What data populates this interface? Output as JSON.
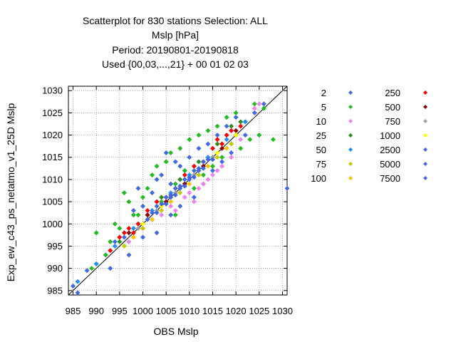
{
  "chart_data": {
    "type": "scatter",
    "title_lines": [
      "Scatterplot for  830 stations Selection: ALL",
      "Mslp [hPa]",
      "Period: 20190801-20190818",
      "Used {00,03,...,21} + 00 01 02 03"
    ],
    "xlabel": "OBS Mslp",
    "ylabel": "Exp_ew_c43_ps_netatmo_v1_25D Mslp",
    "xlim": [
      984,
      1031
    ],
    "ylim": [
      984,
      1031
    ],
    "xticks": [
      985,
      990,
      995,
      1000,
      1005,
      1010,
      1015,
      1020,
      1025,
      1030
    ],
    "yticks": [
      985,
      990,
      995,
      1000,
      1005,
      1010,
      1015,
      1020,
      1025,
      1030
    ],
    "grid": true,
    "diagonal": "y = x",
    "legend_position": "right",
    "legend": [
      {
        "label": "2",
        "color": "#4169e1"
      },
      {
        "label": "5",
        "color": "#22bb22"
      },
      {
        "label": "10",
        "color": "#ee82ee"
      },
      {
        "label": "25",
        "color": "#2e8b1e"
      },
      {
        "label": "50",
        "color": "#1e90ff"
      },
      {
        "label": "75",
        "color": "#c8c800"
      },
      {
        "label": "100",
        "color": "#ffc000"
      },
      {
        "label": "250",
        "color": "#ff0000"
      },
      {
        "label": "500",
        "color": "#8b0000"
      },
      {
        "label": "750",
        "color": "#a0a0a0"
      },
      {
        "label": "1000",
        "color": "#ffff00"
      },
      {
        "label": "2500",
        "color": "#4169e1"
      },
      {
        "label": "5000",
        "color": "#4169e1"
      },
      {
        "label": "7500",
        "color": "#4169e1"
      }
    ],
    "series": [
      {
        "name": "2",
        "color": "#4169e1",
        "points": [
          [
            985,
            986
          ],
          [
            986,
            984.5
          ],
          [
            988,
            989.5
          ],
          [
            990,
            991
          ],
          [
            993,
            990
          ],
          [
            996,
            997
          ],
          [
            997,
            993
          ],
          [
            998,
            1003
          ],
          [
            999,
            1008
          ],
          [
            1000,
            997
          ],
          [
            1000,
            1004
          ],
          [
            1002,
            1007
          ],
          [
            1003,
            998
          ],
          [
            1004,
            1011
          ],
          [
            1005,
            1016
          ],
          [
            1006,
            1009
          ],
          [
            1006,
            1002
          ],
          [
            1007,
            1014
          ],
          [
            1008,
            1004
          ],
          [
            1009,
            1012
          ],
          [
            1010,
            1015
          ],
          [
            1011,
            1006
          ],
          [
            1012,
            1017
          ],
          [
            1013,
            1009
          ],
          [
            1014,
            1018
          ],
          [
            1015,
            1012
          ],
          [
            1016,
            1020
          ],
          [
            1017,
            1014
          ],
          [
            1018,
            1022
          ],
          [
            1019,
            1016
          ],
          [
            1020,
            1024
          ],
          [
            1022,
            1020
          ],
          [
            1024,
            1025
          ],
          [
            1026,
            1027
          ],
          [
            1031,
            1008
          ],
          [
            1008,
            1013
          ],
          [
            1003,
            1010
          ],
          [
            1001,
            1002
          ],
          [
            994,
            996
          ],
          [
            992,
            993
          ]
        ]
      },
      {
        "name": "5",
        "color": "#22bb22",
        "points": [
          [
            989,
            990
          ],
          [
            990,
            998
          ],
          [
            992,
            993
          ],
          [
            994,
            1000
          ],
          [
            995,
            999
          ],
          [
            996,
            1007
          ],
          [
            997,
            1005
          ],
          [
            998,
            1002
          ],
          [
            1000,
            1006
          ],
          [
            1001,
            1008
          ],
          [
            1002,
            1011
          ],
          [
            1003,
            1013
          ],
          [
            1004,
            1005
          ],
          [
            1005,
            1014
          ],
          [
            1006,
            1016
          ],
          [
            1007,
            1002
          ],
          [
            1008,
            1017
          ],
          [
            1009,
            1012
          ],
          [
            1010,
            1019
          ],
          [
            1011,
            1008
          ],
          [
            1012,
            1020
          ],
          [
            1013,
            1011
          ],
          [
            1014,
            1021
          ],
          [
            1015,
            1013
          ],
          [
            1016,
            1022
          ],
          [
            1017,
            1015
          ],
          [
            1018,
            1024
          ],
          [
            1019,
            1018
          ],
          [
            1020,
            1025
          ],
          [
            1021,
            1017
          ],
          [
            1022,
            1023
          ],
          [
            1023,
            1019
          ],
          [
            1024,
            1027
          ],
          [
            1025,
            1020
          ],
          [
            1026,
            1026
          ],
          [
            1028,
            1019
          ],
          [
            1012,
            1012
          ],
          [
            1007,
            1009
          ],
          [
            999,
            1002
          ],
          [
            993,
            996
          ]
        ]
      },
      {
        "name": "10",
        "color": "#ee82ee",
        "points": [
          [
            994,
            995
          ],
          [
            997,
            996
          ],
          [
            1000,
            999
          ],
          [
            1002,
            1001
          ],
          [
            1004,
            1002
          ],
          [
            1006,
            1004
          ],
          [
            1007,
            1003
          ],
          [
            1009,
            1006
          ],
          [
            1010,
            1007
          ],
          [
            1011,
            1005
          ],
          [
            1012,
            1008
          ],
          [
            1013,
            1009
          ],
          [
            1014,
            1010
          ],
          [
            1015,
            1011
          ],
          [
            1016,
            1012
          ],
          [
            1017,
            1013
          ],
          [
            1019,
            1015
          ],
          [
            1021,
            1019
          ],
          [
            1024,
            1026
          ],
          [
            1025,
            1027
          ]
        ]
      },
      {
        "name": "25",
        "color": "#2e8b1e",
        "points": [
          [
            995,
            996
          ],
          [
            999,
            1000
          ],
          [
            1004,
            1006
          ],
          [
            1008,
            1010
          ],
          [
            1012,
            1014
          ],
          [
            1016,
            1018
          ],
          [
            1019,
            1022
          ],
          [
            1021,
            1023
          ]
        ]
      },
      {
        "name": "50",
        "color": "#1e90ff",
        "points": [
          [
            986,
            987
          ],
          [
            990,
            991
          ],
          [
            994,
            995
          ],
          [
            998,
            999
          ],
          [
            1002,
            1003
          ],
          [
            1006,
            1007
          ],
          [
            1010,
            1011
          ],
          [
            1014,
            1015
          ],
          [
            1018,
            1019
          ],
          [
            1022,
            1023
          ]
        ]
      },
      {
        "name": "75",
        "color": "#c8c800",
        "points": [
          [
            996,
            995
          ],
          [
            1000,
            999
          ],
          [
            1004,
            1003
          ],
          [
            1008,
            1007
          ],
          [
            1012,
            1011
          ],
          [
            1016,
            1015
          ],
          [
            1019,
            1018
          ]
        ]
      },
      {
        "name": "100",
        "color": "#ffc000",
        "points": [
          [
            998,
            997
          ],
          [
            1002,
            1001
          ],
          [
            1006,
            1005
          ],
          [
            1010,
            1009
          ],
          [
            1014,
            1013
          ],
          [
            1018,
            1017
          ]
        ]
      },
      {
        "name": "250",
        "color": "#ff0000",
        "points": [
          [
            993,
            994
          ],
          [
            995,
            997
          ],
          [
            996,
            998
          ],
          [
            997,
            999
          ],
          [
            998,
            998
          ],
          [
            999,
            1000
          ],
          [
            1001,
            1003
          ],
          [
            1003,
            1005
          ],
          [
            1005,
            1006
          ],
          [
            1007,
            1008
          ],
          [
            1009,
            1011
          ],
          [
            1011,
            1013
          ],
          [
            1013,
            1014
          ],
          [
            1015,
            1017
          ],
          [
            1017,
            1018
          ],
          [
            1018,
            1020
          ],
          [
            1019,
            1021
          ],
          [
            1020,
            1020
          ],
          [
            1021,
            1022
          ],
          [
            1016,
            1019
          ]
        ]
      },
      {
        "name": "500",
        "color": "#8b0000",
        "points": [
          [
            997,
            998
          ],
          [
            1001,
            1002
          ],
          [
            1005,
            1005
          ],
          [
            1009,
            1009
          ],
          [
            1013,
            1013
          ],
          [
            1017,
            1017
          ],
          [
            1020,
            1021
          ]
        ]
      },
      {
        "name": "750",
        "color": "#a0a0a0",
        "points": [
          [
            999,
            999
          ],
          [
            1003,
            1003
          ],
          [
            1007,
            1007
          ],
          [
            1011,
            1011
          ],
          [
            1015,
            1015
          ]
        ]
      },
      {
        "name": "1000",
        "color": "#ffff00",
        "points": [
          [
            1000,
            1000
          ],
          [
            1004,
            1004
          ],
          [
            1008,
            1008
          ],
          [
            1012,
            1012
          ],
          [
            1016,
            1016
          ],
          [
            1020,
            1020
          ]
        ]
      },
      {
        "name": "2500",
        "color": "#4169e1",
        "points": [
          [
            1001,
            1001
          ],
          [
            1002,
            1002.5
          ],
          [
            1003,
            1002.5
          ],
          [
            1004,
            1004.5
          ],
          [
            1005,
            1004.5
          ],
          [
            1006,
            1006.5
          ],
          [
            1007,
            1006.5
          ],
          [
            1008,
            1008.5
          ],
          [
            1009,
            1008.5
          ],
          [
            1010,
            1010.5
          ],
          [
            1011,
            1010.5
          ],
          [
            1012,
            1012.5
          ],
          [
            1013,
            1012.5
          ],
          [
            1014,
            1014.5
          ],
          [
            1015,
            1014.5
          ]
        ]
      },
      {
        "name": "5000",
        "color": "#4169e1",
        "points": [
          [
            1003,
            1004
          ],
          [
            1005,
            1006
          ],
          [
            1007,
            1008
          ],
          [
            1009,
            1010
          ],
          [
            1011,
            1012
          ],
          [
            1013,
            1014
          ]
        ]
      },
      {
        "name": "7500",
        "color": "#4169e1",
        "points": [
          [
            1006,
            1006
          ],
          [
            1008,
            1008
          ],
          [
            1010,
            1010
          ],
          [
            1012,
            1012
          ]
        ]
      }
    ]
  }
}
